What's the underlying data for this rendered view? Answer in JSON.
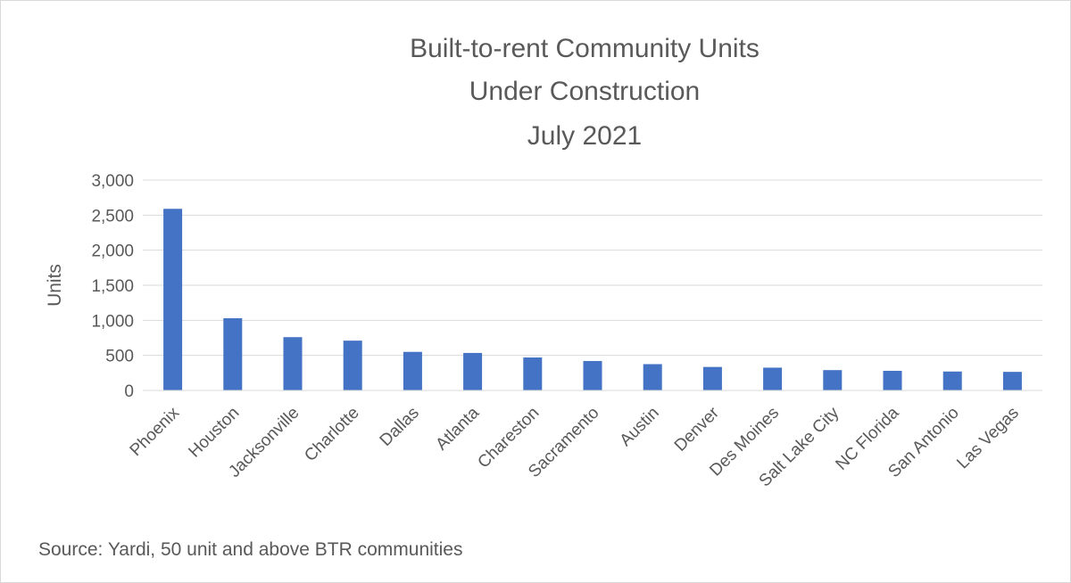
{
  "chart_data": {
    "type": "bar",
    "title_lines": [
      "Built-to-rent Community Units",
      "Under Construction",
      "July 2021"
    ],
    "ylabel": "Units",
    "xlabel": "",
    "ylim": [
      0,
      3000
    ],
    "ytick_labels": [
      "0",
      "500",
      "1,000",
      "1,500",
      "2,000",
      "2,500",
      "3,000"
    ],
    "ytick_values": [
      0,
      500,
      1000,
      1500,
      2000,
      2500,
      3000
    ],
    "categories": [
      "Phoenix",
      "Houston",
      "Jacksonville",
      "Charlotte",
      "Dallas",
      "Atlanta",
      "Chareston",
      "Sacramento",
      "Austin",
      "Denver",
      "Des Moines",
      "Salt Lake City",
      "NC Florida",
      "San Antonio",
      "Las Vegas"
    ],
    "values": [
      2590,
      1030,
      760,
      710,
      550,
      535,
      470,
      420,
      375,
      335,
      325,
      290,
      280,
      270,
      265
    ],
    "bar_color": "#4472c4",
    "grid": true,
    "legend": "none",
    "source_note": "Source: Yardi, 50 unit and above BTR communities"
  }
}
